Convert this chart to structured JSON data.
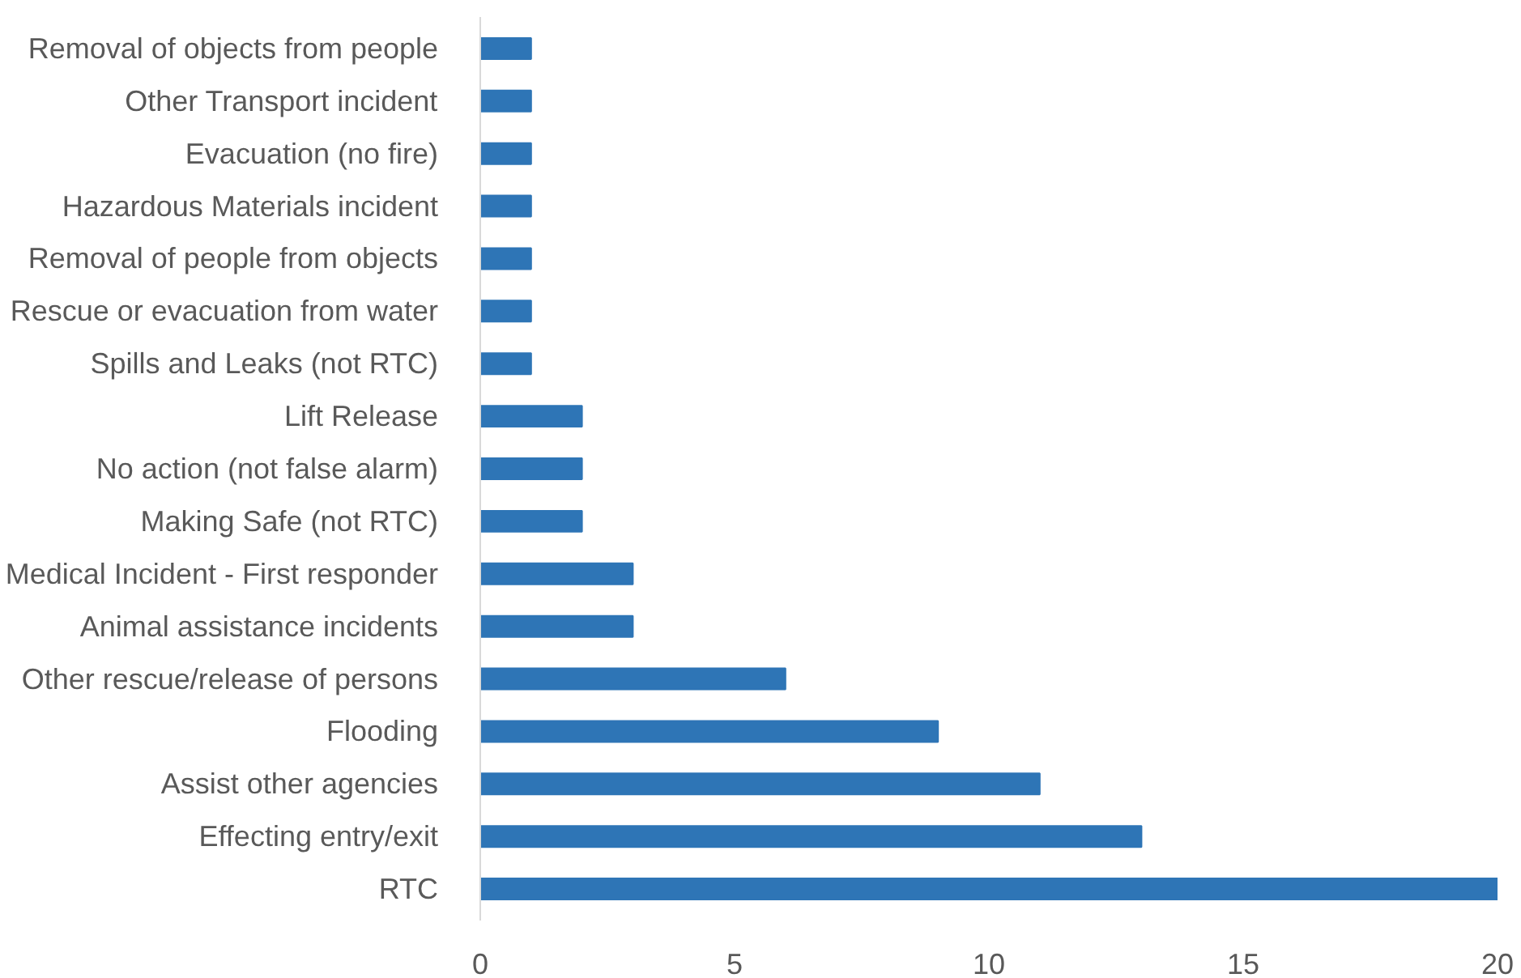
{
  "chart_data": {
    "type": "bar",
    "orientation": "horizontal",
    "categories": [
      "Removal of objects from people",
      "Other Transport incident",
      "Evacuation (no fire)",
      "Hazardous Materials incident",
      "Removal of people from objects",
      "Rescue or evacuation from water",
      "Spills and Leaks (not RTC)",
      "Lift Release",
      "No action (not false alarm)",
      "Making Safe (not RTC)",
      "Medical Incident - First responder",
      "Animal assistance incidents",
      "Other rescue/release of persons",
      "Flooding",
      "Assist other agencies",
      "Effecting entry/exit",
      "RTC"
    ],
    "values": [
      1,
      1,
      1,
      1,
      1,
      1,
      1,
      2,
      2,
      2,
      3,
      3,
      6,
      9,
      11,
      13,
      20
    ],
    "color": "#2e75b6",
    "xlim": [
      0,
      20
    ],
    "xticks": [
      0,
      5,
      10,
      15,
      20
    ]
  }
}
